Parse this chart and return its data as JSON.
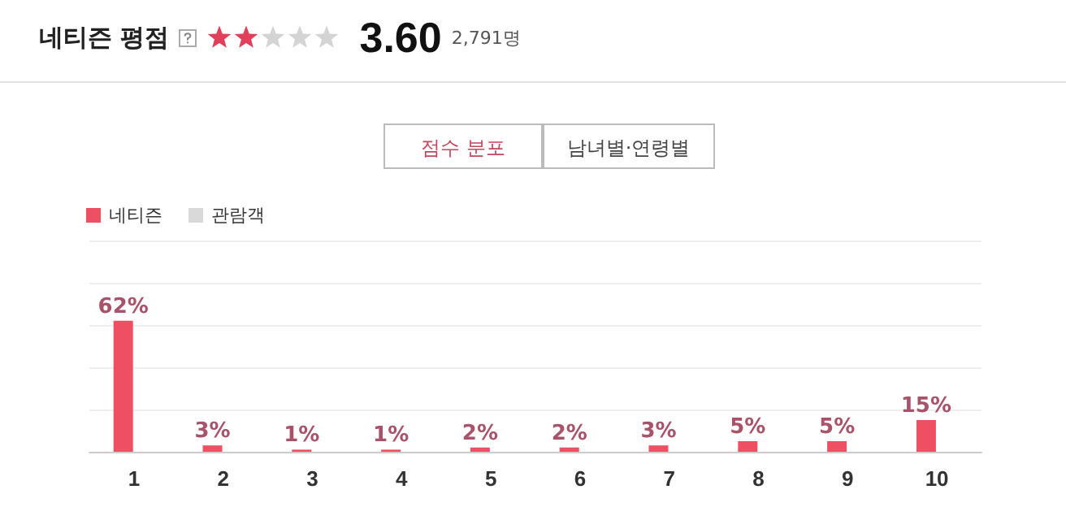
{
  "chart_data": {
    "type": "bar",
    "title": "네티즌 평점",
    "annotations": [
      "3.60",
      "2,791명",
      "점수 분포",
      "남녀별·연령별"
    ],
    "categories": [
      "1",
      "2",
      "3",
      "4",
      "5",
      "6",
      "7",
      "8",
      "9",
      "10"
    ],
    "series": [
      {
        "name": "네티즌",
        "color": "#ef4f62",
        "values": [
          62,
          3,
          1,
          1,
          2,
          2,
          3,
          5,
          5,
          15
        ],
        "value_labels": [
          "62%",
          "3%",
          "1%",
          "1%",
          "2%",
          "2%",
          "3%",
          "5%",
          "5%",
          "15%"
        ]
      },
      {
        "name": "관람객",
        "color": "#d9d9d9",
        "values": [
          null,
          null,
          null,
          null,
          null,
          null,
          null,
          null,
          null,
          null
        ]
      }
    ],
    "ylim": [
      0,
      100
    ],
    "yticks": [
      {
        "value": 0,
        "label": null
      },
      {
        "value": 20,
        "label": null
      },
      {
        "value": 40,
        "label": null
      },
      {
        "value": 60,
        "label": null
      },
      {
        "value": 80,
        "label": null
      },
      {
        "value": 100,
        "label": null
      }
    ],
    "tick_labels": "x",
    "grid": "y",
    "legend": "top left"
  }
}
